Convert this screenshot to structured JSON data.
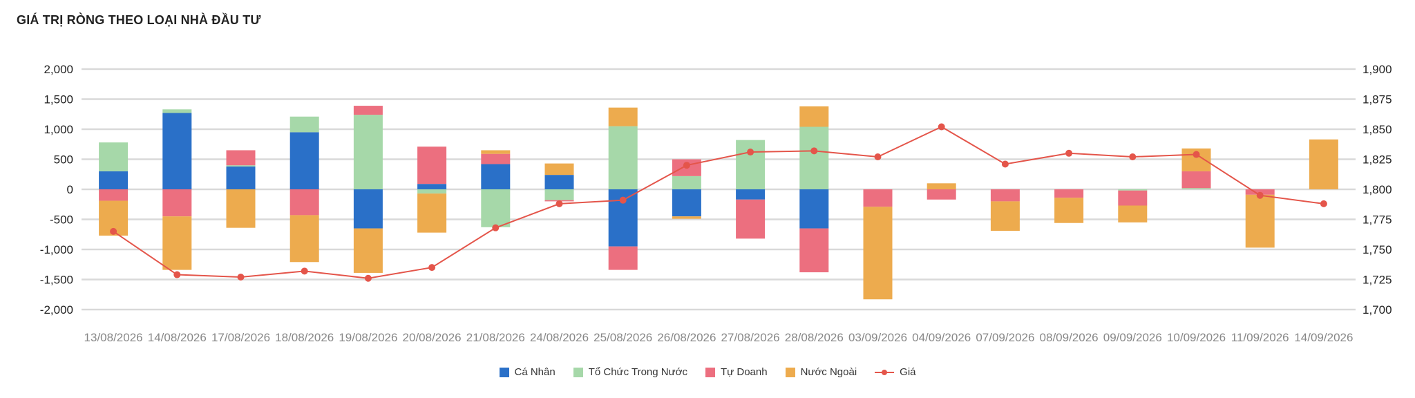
{
  "title": "GIÁ TRỊ RÒNG THEO LOẠI NHÀ ĐẦU TƯ",
  "chart_data": {
    "type": "bar",
    "stacked": true,
    "categories": [
      "13/08/2026",
      "14/08/2026",
      "17/08/2026",
      "18/08/2026",
      "19/08/2026",
      "20/08/2026",
      "21/08/2026",
      "24/08/2026",
      "25/08/2026",
      "26/08/2026",
      "27/08/2026",
      "28/08/2026",
      "03/09/2026",
      "04/09/2026",
      "07/09/2026",
      "08/09/2026",
      "09/09/2026",
      "10/09/2026",
      "11/09/2026",
      "14/09/2026"
    ],
    "series": [
      {
        "name": "Cá Nhân",
        "color": "#2a70c8",
        "values": [
          300,
          1270,
          380,
          950,
          -650,
          90,
          420,
          240,
          -950,
          -450,
          -170,
          -650,
          0,
          0,
          0,
          0,
          0,
          0,
          0,
          0
        ]
      },
      {
        "name": "Tổ Chức Trong Nước",
        "color": "#a6d8a9",
        "values": [
          480,
          60,
          20,
          260,
          1240,
          -70,
          -630,
          -180,
          1050,
          220,
          820,
          1040,
          0,
          0,
          0,
          0,
          -20,
          20,
          0,
          0
        ]
      },
      {
        "name": "Tự Doanh",
        "color": "#ec6f7f",
        "values": [
          -190,
          -450,
          250,
          -430,
          150,
          620,
          170,
          -20,
          -390,
          280,
          -650,
          -730,
          -290,
          -170,
          -200,
          -140,
          -250,
          280,
          -90,
          0
        ]
      },
      {
        "name": "Nước Ngoài",
        "color": "#edab4e",
        "values": [
          -580,
          -890,
          -640,
          -780,
          -740,
          -650,
          60,
          190,
          310,
          -40,
          0,
          340,
          -1540,
          100,
          -490,
          -420,
          -280,
          380,
          -880,
          830
        ]
      }
    ],
    "line": {
      "name": "Giá",
      "color": "#e4554a",
      "values": [
        1765,
        1729,
        1727,
        1732,
        1726,
        1735,
        1768,
        1788,
        1791,
        1820,
        1831,
        1832,
        1827,
        1852,
        1821,
        1830,
        1827,
        1829,
        1795,
        1788
      ]
    },
    "y_left": {
      "min": -2000,
      "max": 2000,
      "ticks": [
        "2,000",
        "1,500",
        "1,000",
        "500",
        "0",
        "-500",
        "-1,000",
        "-1,500",
        "-2,000"
      ]
    },
    "y_right": {
      "min": 1700,
      "max": 1900,
      "ticks": [
        "1,900",
        "1,875",
        "1,850",
        "1,825",
        "1,800",
        "1,775",
        "1,750",
        "1,725",
        "1,700"
      ]
    },
    "grid": true,
    "legend_position": "bottom"
  },
  "legend": [
    {
      "label": "Cá Nhân",
      "color": "#2a70c8",
      "kind": "box"
    },
    {
      "label": "Tổ Chức Trong Nước",
      "color": "#a6d8a9",
      "kind": "box"
    },
    {
      "label": "Tự Doanh",
      "color": "#ec6f7f",
      "kind": "box"
    },
    {
      "label": "Nước Ngoài",
      "color": "#edab4e",
      "kind": "box"
    },
    {
      "label": "Giá",
      "color": "#e4554a",
      "kind": "line"
    }
  ]
}
